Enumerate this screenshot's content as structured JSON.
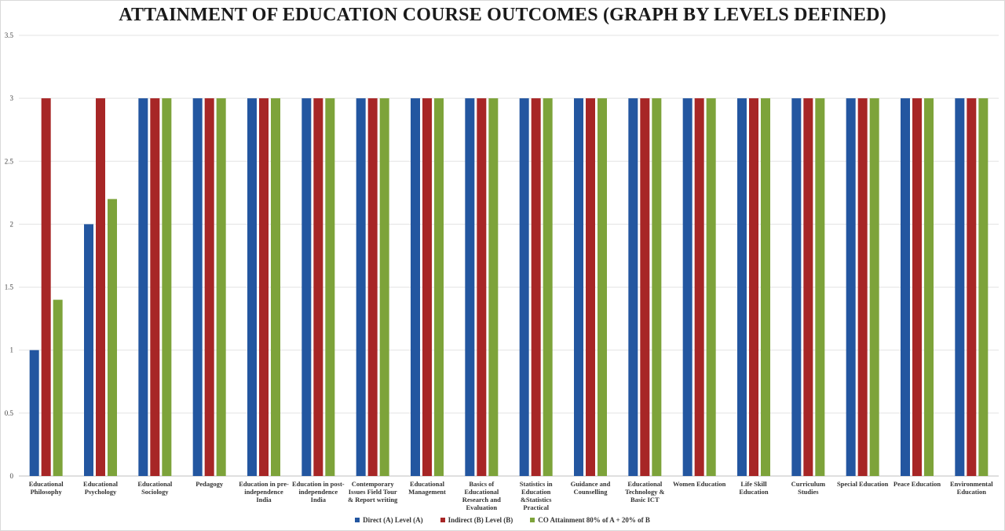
{
  "chart_data": {
    "type": "bar",
    "title": "ATTAINMENT OF EDUCATION COURSE OUTCOMES (GRAPH BY LEVELS DEFINED)",
    "categories": [
      [
        "Educational",
        "Philosophy"
      ],
      [
        "Educational",
        "Psychology"
      ],
      [
        "Educational",
        "Sociology"
      ],
      [
        "Pedagogy"
      ],
      [
        "Education in pre-",
        "independence",
        "India"
      ],
      [
        "Education in post-",
        "independence",
        "India"
      ],
      [
        "Contemporary",
        "Issues  Field Tour",
        "& Report writing"
      ],
      [
        "Educational",
        "Management"
      ],
      [
        "Basics of",
        "Educational",
        "Research and",
        "Evaluation"
      ],
      [
        "Statistics in",
        "Education",
        "&Statistics",
        "Practical"
      ],
      [
        "Guidance and",
        "Counselling"
      ],
      [
        "Educational",
        "Technology  &",
        "Basic ICT"
      ],
      [
        "Women Education"
      ],
      [
        "Life Skill",
        "Education"
      ],
      [
        "Curriculum",
        "Studies"
      ],
      [
        "Special Education"
      ],
      [
        "Peace Education"
      ],
      [
        "Environmental",
        "Education"
      ]
    ],
    "series": [
      {
        "name": "Direct   (A) Level (A)",
        "color": "#2356a0",
        "values": [
          1,
          2,
          3,
          3,
          3,
          3,
          3,
          3,
          3,
          3,
          3,
          3,
          3,
          3,
          3,
          3,
          3,
          3
        ]
      },
      {
        "name": "Indirect  (B) Level (B)",
        "color": "#a72626",
        "values": [
          3,
          3,
          3,
          3,
          3,
          3,
          3,
          3,
          3,
          3,
          3,
          3,
          3,
          3,
          3,
          3,
          3,
          3
        ]
      },
      {
        "name": "CO Attainment 80% of A + 20% of B",
        "color": "#7da33a",
        "values": [
          1.4,
          2.2,
          3,
          3,
          3,
          3,
          3,
          3,
          3,
          3,
          3,
          3,
          3,
          3,
          3,
          3,
          3,
          3
        ]
      }
    ],
    "y_ticks": [
      "0",
      "0.5",
      "1",
      "1.5",
      "2",
      "2.5",
      "3",
      "3.5"
    ],
    "ylim": [
      0,
      3.5
    ],
    "grid": true,
    "legend_position": "bottom"
  }
}
